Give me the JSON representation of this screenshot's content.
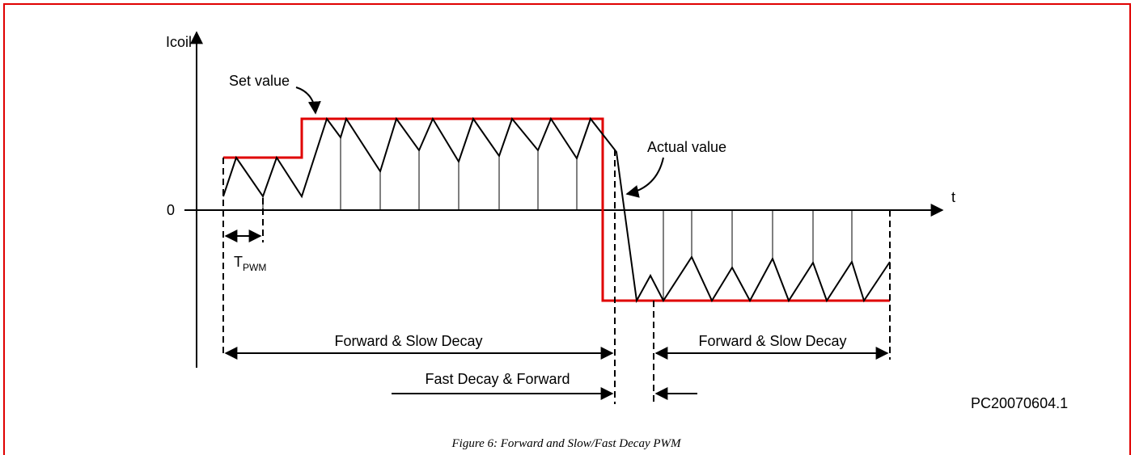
{
  "diagram": {
    "axes": {
      "y_label": "Icoil",
      "x_label": "t",
      "origin": "0"
    },
    "annotations": {
      "set_value": "Set value",
      "actual_value": "Actual value"
    },
    "period": {
      "main": "T",
      "sub": "PWM"
    },
    "phases": [
      "Forward & Slow Decay",
      "Forward & Slow Decay",
      "Fast Decay & Forward"
    ],
    "id": "PC20070604.1"
  },
  "caption": "Figure 6: Forward and Slow/Fast Decay PWM"
}
